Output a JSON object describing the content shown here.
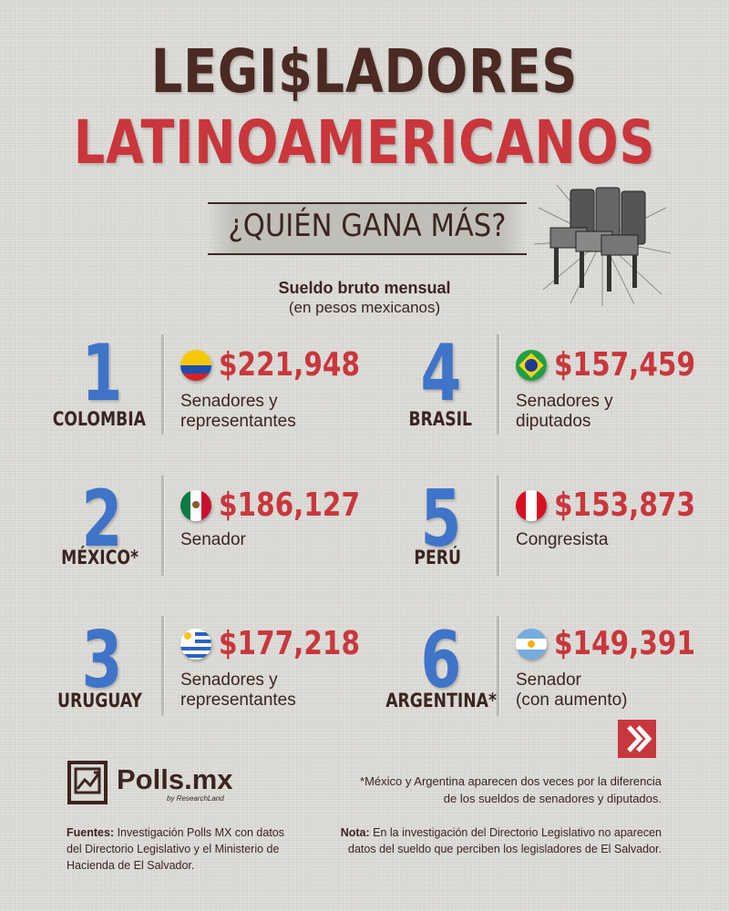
{
  "header": {
    "title_line1": "LEGI$LADORES",
    "title_line2": "LATINOAMERICANOS",
    "subtitle": "¿QUIÉN GANA MÁS?",
    "unit_line1": "Sueldo bruto mensual",
    "unit_line2": "(en pesos mexicanos)"
  },
  "colors": {
    "dark_brown": "#3a2520",
    "red": "#c8373d",
    "blue": "#3f74c9",
    "background": "#dddcd7"
  },
  "ranking": [
    {
      "rank": "1",
      "country": "COLOMBIA",
      "amount": "$221,948",
      "role_line1": "Senadores y",
      "role_line2": "representantes",
      "flag": "colombia-flag-icon"
    },
    {
      "rank": "2",
      "country": "MÉXICO*",
      "amount": "$186,127",
      "role_line1": "Senador",
      "role_line2": "",
      "flag": "mexico-flag-icon"
    },
    {
      "rank": "3",
      "country": "URUGUAY",
      "amount": "$177,218",
      "role_line1": "Senadores y",
      "role_line2": "representantes",
      "flag": "uruguay-flag-icon"
    },
    {
      "rank": "4",
      "country": "BRASIL",
      "amount": "$157,459",
      "role_line1": "Senadores y",
      "role_line2": "diputados",
      "flag": "brazil-flag-icon"
    },
    {
      "rank": "5",
      "country": "PERÚ",
      "amount": "$153,873",
      "role_line1": "Congresista",
      "role_line2": "",
      "flag": "peru-flag-icon"
    },
    {
      "rank": "6",
      "country": "ARGENTINA*",
      "amount": "$149,391",
      "role_line1": "Senador",
      "role_line2": "(con aumento)",
      "flag": "argentina-flag-icon"
    }
  ],
  "footer": {
    "brand": "Polls.mx",
    "brand_sub": "by ResearchLand",
    "note_asterisk_line1": "*México y Argentina aparecen dos veces por la diferencia",
    "note_asterisk_line2": "de los sueldos de senadores y diputados.",
    "sources_label": "Fuentes:",
    "sources_text": "Investigación Polls MX con datos del Directorio Legislativo y el Ministerio de Hacienda de El Salvador.",
    "nota_label": "Nota:",
    "nota_text": "En la investigación del Directorio Legislativo no aparecen datos del sueldo que perciben los legisladores de El Salvador."
  }
}
